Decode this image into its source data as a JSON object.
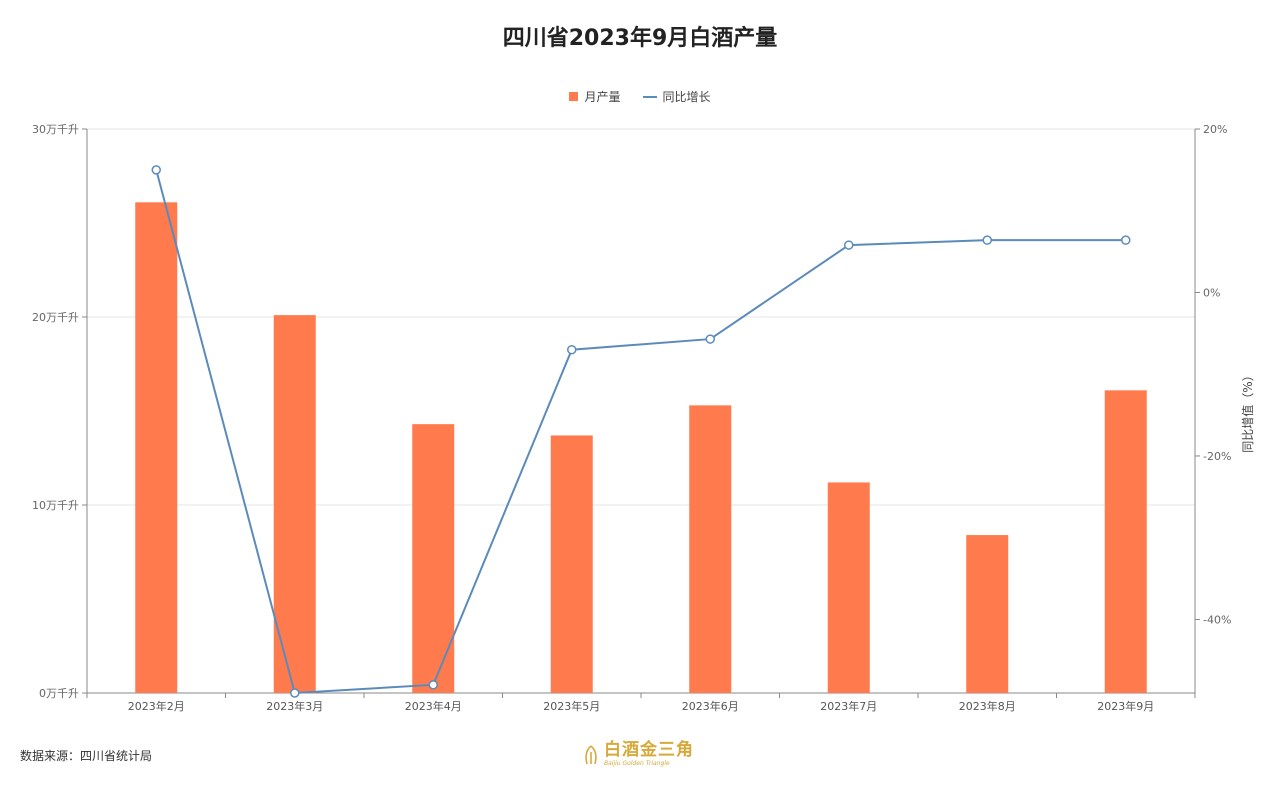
{
  "chart_data": {
    "type": "bar+line",
    "title": "四川省2023年9月白酒产量",
    "categories": [
      "2023年2月",
      "2023年3月",
      "2023年4月",
      "2023年5月",
      "2023年6月",
      "2023年7月",
      "2023年8月",
      "2023年9月"
    ],
    "series": [
      {
        "name": "月产量",
        "type": "bar",
        "axis": "left",
        "color": "#ff7a4d",
        "values": [
          26.1,
          20.1,
          14.3,
          13.7,
          15.3,
          11.2,
          8.4,
          16.1
        ]
      },
      {
        "name": "同比增长",
        "type": "line",
        "axis": "right",
        "color": "#5b8bba",
        "values": [
          15.0,
          -49.0,
          -48.0,
          -7.0,
          -5.7,
          5.8,
          6.4,
          6.4
        ]
      }
    ],
    "left_axis": {
      "ylim": [
        0,
        30
      ],
      "ticks": [
        0,
        10,
        20,
        30
      ],
      "unit_suffix": "万千升"
    },
    "right_axis": {
      "ylim": [
        -49,
        20
      ],
      "ticks": [
        -40,
        -20,
        0,
        20
      ],
      "unit_suffix": "%",
      "label": "同比增值（%）"
    },
    "legend_position": "top-center",
    "grid": true
  },
  "footer": {
    "source": "数据来源：四川省统计局",
    "logo_cn": "白酒金三角",
    "logo_en": "Baijiu Golden Triangle"
  }
}
